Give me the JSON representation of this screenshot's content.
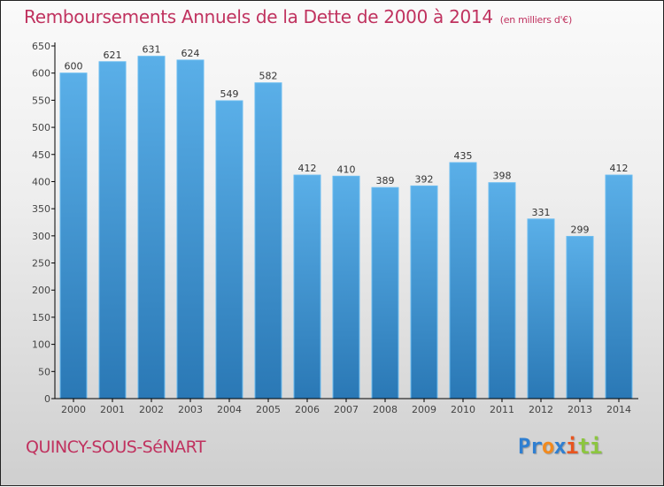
{
  "title": "Remboursements Annuels de la Dette de 2000 à 2014",
  "unit_note": "(en milliers d'€)",
  "city": "QUINCY-SOUS-SéNART",
  "logo": {
    "letters": [
      {
        "char": "P",
        "color": "#2f7fd1"
      },
      {
        "char": "r",
        "color": "#2f7fd1"
      },
      {
        "char": "o",
        "color": "#f28a1e"
      },
      {
        "char": "x",
        "color": "#2f7fd1"
      },
      {
        "char": "i",
        "color": "#e8541e"
      },
      {
        "char": "t",
        "color": "#8cc63f"
      },
      {
        "char": "i",
        "color": "#8cc63f"
      }
    ]
  },
  "colors": {
    "title": "#c0325f",
    "bar_top": "#5aafe8",
    "bar_bottom": "#2a78b5",
    "axis": "#000000"
  },
  "chart_data": {
    "type": "bar",
    "title": "Remboursements Annuels de la Dette de 2000 à 2014",
    "subtitle": "(en milliers d'€)",
    "xlabel": "",
    "ylabel": "",
    "categories": [
      "2000",
      "2001",
      "2002",
      "2003",
      "2004",
      "2005",
      "2006",
      "2007",
      "2008",
      "2009",
      "2010",
      "2011",
      "2012",
      "2013",
      "2014"
    ],
    "values": [
      600,
      621,
      631,
      624,
      549,
      582,
      412,
      410,
      389,
      392,
      435,
      398,
      331,
      299,
      412
    ],
    "ylim": [
      0,
      650
    ],
    "yticks": [
      0,
      50,
      100,
      150,
      200,
      250,
      300,
      350,
      400,
      450,
      500,
      550,
      600,
      650
    ],
    "grid": false,
    "legend": "none"
  }
}
